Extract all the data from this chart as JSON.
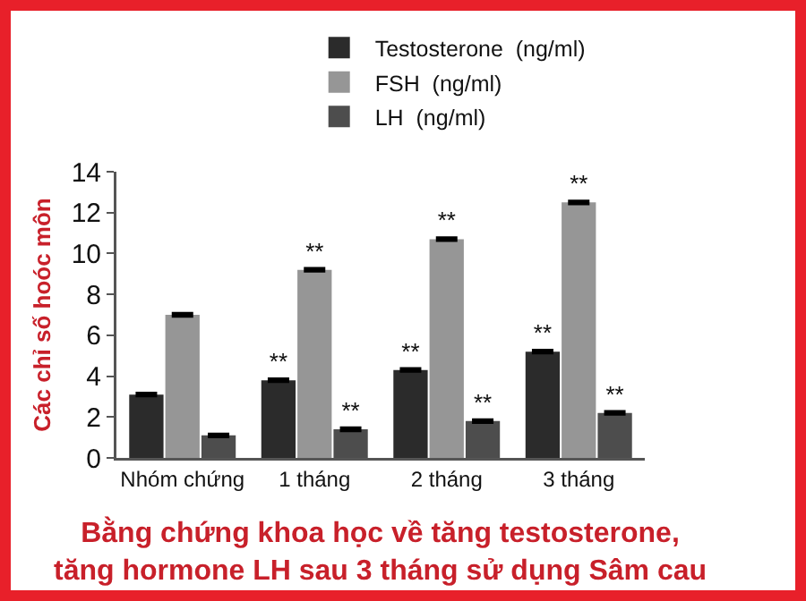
{
  "chart_data": {
    "type": "bar",
    "title": "Bằng chứng khoa học về tăng testosterone,\ntăng hormone LH sau 3 tháng sử dụng Sâm cau",
    "ylabel": "Các chỉ số hoóc môn",
    "categories": [
      "Nhóm chứng",
      "1 tháng",
      "2 tháng",
      "3 tháng"
    ],
    "series": [
      {
        "name": "Testosterone  (ng/ml)",
        "color": "#2b2b2b",
        "values": [
          3.1,
          3.8,
          4.3,
          5.2
        ],
        "errors": [
          0.05,
          0.05,
          0.05,
          0.05
        ],
        "value_labels": [
          null,
          "**",
          "**",
          "**"
        ]
      },
      {
        "name": "FSH  (ng/ml)",
        "color": "#969696",
        "values": [
          7.0,
          9.2,
          10.7,
          12.5
        ],
        "errors": [
          0.05,
          0.05,
          0.05,
          0.05
        ],
        "value_labels": [
          null,
          "**",
          "**",
          "**"
        ]
      },
      {
        "name": "LH  (ng/ml)",
        "color": "#4d4d4d",
        "values": [
          1.1,
          1.4,
          1.8,
          2.2
        ],
        "errors": [
          0.05,
          0.05,
          0.05,
          0.05
        ],
        "value_labels": [
          null,
          "**",
          "**",
          "**"
        ]
      }
    ],
    "ylim": [
      0,
      14
    ],
    "yticks": [
      0,
      2,
      4,
      6,
      8,
      10,
      12,
      14
    ],
    "grid": false,
    "legend": "top"
  }
}
